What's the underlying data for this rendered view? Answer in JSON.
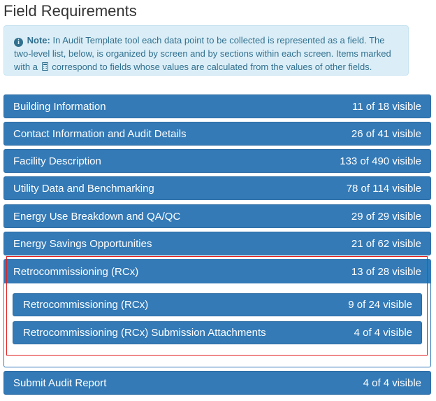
{
  "page_title": "Field Requirements",
  "note": {
    "label": "Note:",
    "text_before_icon": "In Audit Template tool each data point to be collected is represented as a field. The two-level list, below, is organized by screen and by sections within each screen. Items marked with a",
    "text_after_icon": "correspond to fields whose values are calculated from the values of other fields.",
    "icons": [
      "info-circle-icon",
      "calculator-icon"
    ],
    "color": "#31708f",
    "background": "#dbeef7"
  },
  "sections": [
    {
      "title": "Building Information",
      "count": "11 of 18 visible"
    },
    {
      "title": "Contact Information and Audit Details",
      "count": "26 of 41 visible"
    },
    {
      "title": "Facility Description",
      "count": "133 of 490 visible"
    },
    {
      "title": "Utility Data and Benchmarking",
      "count": "78 of 114 visible"
    },
    {
      "title": "Energy Use Breakdown and QA/QC",
      "count": "29 of 29 visible"
    },
    {
      "title": "Energy Savings Opportunities",
      "count": "21 of 62 visible"
    }
  ],
  "expanded_section": {
    "title": "Retrocommissioning (RCx)",
    "count": "13 of 28 visible",
    "subsections": [
      {
        "title": "Retrocommissioning (RCx)",
        "count": "9 of 24 visible"
      },
      {
        "title": "Retrocommissioning (RCx) Submission Attachments",
        "count": "4 of 4 visible"
      }
    ]
  },
  "last_section": {
    "title": "Submit Audit Report",
    "count": "4 of 4 visible"
  },
  "colors": {
    "panel": "#337ab7",
    "highlight": "#e02020"
  }
}
